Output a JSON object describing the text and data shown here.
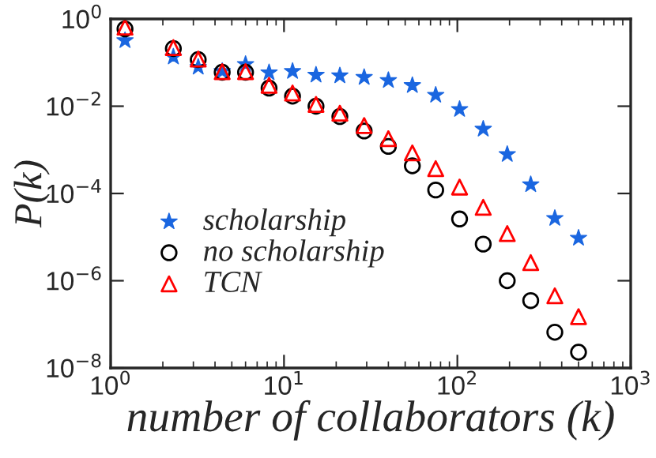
{
  "chart_data": {
    "type": "scatter",
    "xlabel": "number of collaborators (k)",
    "ylabel": "P(k)",
    "log": "xy",
    "legend": "bottom left",
    "grid": false,
    "x": [
      1.21,
      2.3,
      3.2,
      4.4,
      6.0,
      8.2,
      11.2,
      15.3,
      21,
      29,
      40,
      55,
      75,
      103,
      141,
      194,
      265,
      365,
      500
    ],
    "xlim": [
      1,
      1000
    ],
    "ylim": [
      1e-08,
      1
    ],
    "xticks": [
      {
        "value": 1,
        "label": "10$^{0}$"
      },
      {
        "value": 10,
        "label": "10$^{1}$"
      },
      {
        "value": 100,
        "label": "10$^{2}$"
      },
      {
        "value": 1000,
        "label": "10$^{3}$"
      }
    ],
    "yticks": [
      {
        "value": 1e-08,
        "label": "10$^{−8}$"
      },
      {
        "value": 1e-06,
        "label": "10$^{−6}$"
      },
      {
        "value": 0.0001,
        "label": "10$^{−4}$"
      },
      {
        "value": 0.01,
        "label": "10$^{−2}$"
      },
      {
        "value": 1,
        "label": "10$^{0}$"
      }
    ],
    "series": [
      {
        "name": "scholarship",
        "color": "#1a66e0",
        "marker": "star",
        "values": [
          0.32,
          0.135,
          0.079,
          0.063,
          0.091,
          0.059,
          0.063,
          0.052,
          0.05,
          0.046,
          0.039,
          0.03,
          0.018,
          0.0085,
          0.003,
          0.00079,
          0.00016,
          2.7e-05,
          9.5e-06
        ]
      },
      {
        "name": "no scholarship",
        "color": "#000000",
        "marker": "circle",
        "values": [
          0.59,
          0.21,
          0.117,
          0.06,
          0.06,
          0.026,
          0.017,
          0.01,
          0.0058,
          0.0027,
          0.0012,
          0.00043,
          0.00012,
          2.6e-05,
          6.9e-06,
          1e-06,
          3.5e-07,
          6.6e-08,
          2.3e-08
        ]
      },
      {
        "name": "TCN",
        "color": "#ff0000",
        "marker": "triangle",
        "values": [
          0.65,
          0.22,
          0.12,
          0.062,
          0.062,
          0.03,
          0.02,
          0.011,
          0.0069,
          0.0036,
          0.0018,
          0.00085,
          0.00037,
          0.00014,
          4.8e-05,
          1.2e-05,
          2.6e-06,
          4.5e-07,
          1.5e-07
        ]
      }
    ]
  }
}
